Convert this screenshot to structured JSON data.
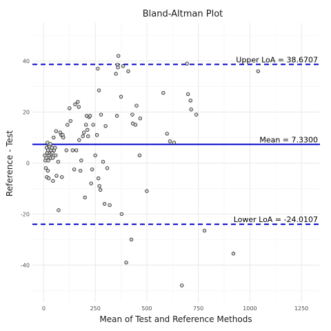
{
  "chart_data": {
    "type": "scatter",
    "title": "Bland-Altman Plot",
    "xlabel": "Mean of Test and Reference Methods",
    "ylabel": "Reference - Test",
    "xlim": [
      -55,
      1340
    ],
    "ylim": [
      -54.5,
      55
    ],
    "xticks": [
      0,
      250,
      500,
      750,
      1000,
      1250
    ],
    "yticks": [
      -40,
      -20,
      0,
      20,
      40
    ],
    "grid": true,
    "legend": "none",
    "reference_lines": [
      {
        "label": "Upper LoA = 38.6707",
        "value": 38.6707,
        "style": "dashed",
        "color": "#0000cc"
      },
      {
        "label": "Mean = 7.3300",
        "value": 7.33,
        "style": "solid",
        "color": "#0000cc"
      },
      {
        "label": "Lower LoA = -24.0107",
        "value": -24.0107,
        "style": "dashed",
        "color": "#0000cc"
      }
    ],
    "points": [
      {
        "x": 5,
        "y": 3
      },
      {
        "x": 8,
        "y": 1
      },
      {
        "x": 10,
        "y": -2
      },
      {
        "x": 12,
        "y": 2
      },
      {
        "x": 14,
        "y": 6
      },
      {
        "x": 15,
        "y": -5.5
      },
      {
        "x": 17,
        "y": 4
      },
      {
        "x": 18,
        "y": 8
      },
      {
        "x": 20,
        "y": -3
      },
      {
        "x": 21,
        "y": 5
      },
      {
        "x": 22,
        "y": 1
      },
      {
        "x": 24,
        "y": -6
      },
      {
        "x": 25,
        "y": 7
      },
      {
        "x": 27,
        "y": 3
      },
      {
        "x": 28,
        "y": 6.5
      },
      {
        "x": 30,
        "y": 4
      },
      {
        "x": 32,
        "y": 7.5
      },
      {
        "x": 33,
        "y": 2
      },
      {
        "x": 35,
        "y": 5
      },
      {
        "x": 37,
        "y": 3.5
      },
      {
        "x": 40,
        "y": 6
      },
      {
        "x": 42,
        "y": 4
      },
      {
        "x": 44,
        "y": 2
      },
      {
        "x": 45,
        "y": -7
      },
      {
        "x": 48,
        "y": 10
      },
      {
        "x": 50,
        "y": 5
      },
      {
        "x": 55,
        "y": 6
      },
      {
        "x": 58,
        "y": 3
      },
      {
        "x": 60,
        "y": 12.5
      },
      {
        "x": 62,
        "y": -5
      },
      {
        "x": 70,
        "y": 0.5
      },
      {
        "x": 72,
        "y": -18.5
      },
      {
        "x": 80,
        "y": 12
      },
      {
        "x": 85,
        "y": 11
      },
      {
        "x": 88,
        "y": -5.5
      },
      {
        "x": 92,
        "y": 11
      },
      {
        "x": 95,
        "y": 10
      },
      {
        "x": 110,
        "y": 5
      },
      {
        "x": 115,
        "y": 15
      },
      {
        "x": 125,
        "y": 21.5
      },
      {
        "x": 130,
        "y": 16.5
      },
      {
        "x": 140,
        "y": 5
      },
      {
        "x": 148,
        "y": -2.5
      },
      {
        "x": 152,
        "y": 23
      },
      {
        "x": 158,
        "y": 5
      },
      {
        "x": 165,
        "y": 24
      },
      {
        "x": 170,
        "y": 22
      },
      {
        "x": 172,
        "y": 9
      },
      {
        "x": 178,
        "y": -3
      },
      {
        "x": 182,
        "y": 1
      },
      {
        "x": 190,
        "y": 10.5
      },
      {
        "x": 195,
        "y": 12
      },
      {
        "x": 200,
        "y": -13.5
      },
      {
        "x": 205,
        "y": 15
      },
      {
        "x": 208,
        "y": 18.5
      },
      {
        "x": 212,
        "y": 13
      },
      {
        "x": 215,
        "y": 10.5
      },
      {
        "x": 220,
        "y": 18
      },
      {
        "x": 225,
        "y": 18.5
      },
      {
        "x": 230,
        "y": -8
      },
      {
        "x": 235,
        "y": -2.5
      },
      {
        "x": 240,
        "y": 15
      },
      {
        "x": 250,
        "y": 3
      },
      {
        "x": 258,
        "y": 11
      },
      {
        "x": 262,
        "y": 37
      },
      {
        "x": 265,
        "y": -6
      },
      {
        "x": 268,
        "y": 28.5
      },
      {
        "x": 270,
        "y": -9
      },
      {
        "x": 275,
        "y": -10.5
      },
      {
        "x": 278,
        "y": 19
      },
      {
        "x": 288,
        "y": 0.5
      },
      {
        "x": 295,
        "y": -16
      },
      {
        "x": 300,
        "y": 14.5
      },
      {
        "x": 308,
        "y": -2
      },
      {
        "x": 320,
        "y": -16.5
      },
      {
        "x": 350,
        "y": 35
      },
      {
        "x": 355,
        "y": 18.5
      },
      {
        "x": 358,
        "y": 38.5
      },
      {
        "x": 360,
        "y": 37.5
      },
      {
        "x": 362,
        "y": 42
      },
      {
        "x": 375,
        "y": 26
      },
      {
        "x": 378,
        "y": -20
      },
      {
        "x": 385,
        "y": 38
      },
      {
        "x": 400,
        "y": -39
      },
      {
        "x": 410,
        "y": 36
      },
      {
        "x": 425,
        "y": -30
      },
      {
        "x": 430,
        "y": 19
      },
      {
        "x": 432,
        "y": 15.5
      },
      {
        "x": 445,
        "y": 15
      },
      {
        "x": 450,
        "y": 22.5
      },
      {
        "x": 465,
        "y": 3
      },
      {
        "x": 468,
        "y": 17.5
      },
      {
        "x": 500,
        "y": -11
      },
      {
        "x": 580,
        "y": 27.5
      },
      {
        "x": 598,
        "y": 11.5
      },
      {
        "x": 612,
        "y": 8.5
      },
      {
        "x": 632,
        "y": 8
      },
      {
        "x": 670,
        "y": -48
      },
      {
        "x": 695,
        "y": 39
      },
      {
        "x": 700,
        "y": 27
      },
      {
        "x": 712,
        "y": 24.5
      },
      {
        "x": 715,
        "y": 21
      },
      {
        "x": 740,
        "y": 19
      },
      {
        "x": 780,
        "y": -26.5
      },
      {
        "x": 920,
        "y": -35.5
      },
      {
        "x": 1040,
        "y": 36
      }
    ]
  }
}
